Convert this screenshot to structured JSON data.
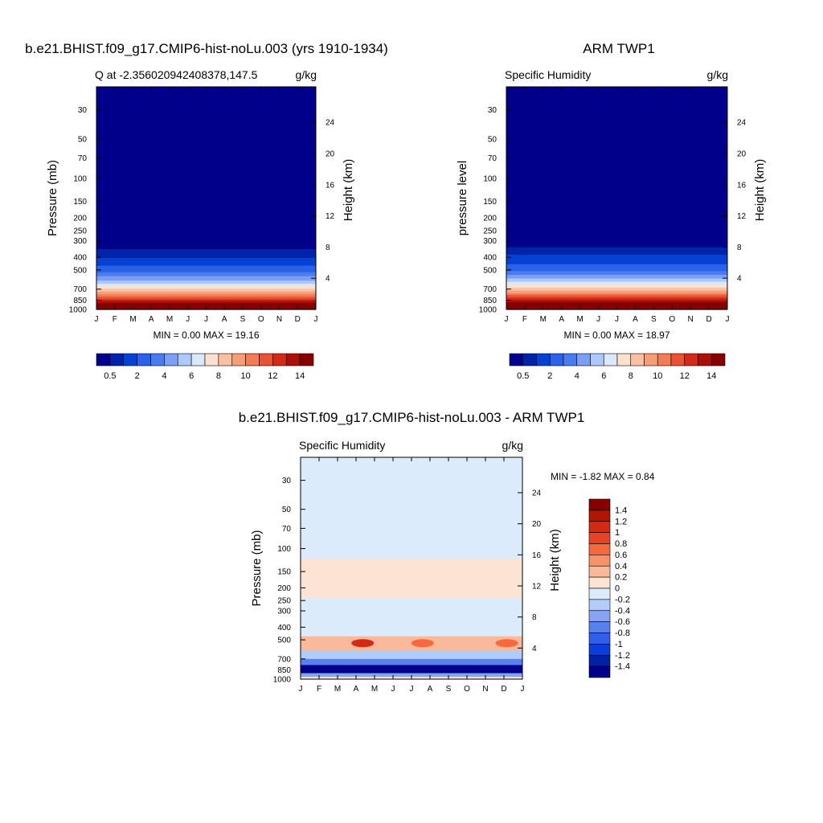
{
  "chart_data": [
    {
      "type": "heatmap",
      "title": "b.e21.BHIST.f09_g17.CMIP6-hist-noLu.003 (yrs 1910-1934)",
      "subtitle_left": "Q at -2.356020942408378,147.5",
      "subtitle_right": "g/kg",
      "ylabel": "Pressure (mb)",
      "ylabel_right": "Height (km)",
      "x_ticks": [
        "J",
        "F",
        "M",
        "A",
        "M",
        "J",
        "J",
        "A",
        "S",
        "O",
        "N",
        "D",
        "J"
      ],
      "y_ticks": [
        "30",
        "50",
        "70",
        "100",
        "150",
        "200",
        "250",
        "300",
        "400",
        "500",
        "700",
        "850",
        "1000"
      ],
      "y_ticks_right": [
        "24",
        "20",
        "16",
        "12",
        "8",
        "4"
      ],
      "min_max_text": "MIN =   0.00 MAX =  19.16",
      "colorbar_labels": [
        "0.5",
        "2",
        "4",
        "6",
        "8",
        "10",
        "12",
        "14"
      ],
      "profile": [
        {
          "p": 300,
          "q": 0.1
        },
        {
          "p": 400,
          "q": 1.0
        },
        {
          "p": 500,
          "q": 2.5
        },
        {
          "p": 600,
          "q": 5.0
        },
        {
          "p": 700,
          "q": 8.0
        },
        {
          "p": 850,
          "q": 12.5
        },
        {
          "p": 1000,
          "q": 17.5
        }
      ],
      "scale": "sequential"
    },
    {
      "type": "heatmap",
      "title": "ARM TWP1",
      "subtitle_left": "Specific Humidity",
      "subtitle_right": "g/kg",
      "ylabel": "pressure level",
      "ylabel_right": "Height (km)",
      "x_ticks": [
        "J",
        "F",
        "M",
        "A",
        "M",
        "J",
        "J",
        "A",
        "S",
        "O",
        "N",
        "D",
        "J"
      ],
      "y_ticks": [
        "30",
        "50",
        "70",
        "100",
        "150",
        "200",
        "250",
        "300",
        "400",
        "500",
        "700",
        "850",
        "1000"
      ],
      "y_ticks_right": [
        "24",
        "20",
        "16",
        "12",
        "8",
        "4"
      ],
      "min_max_text": "MIN =   0.00 MAX =  18.97",
      "colorbar_labels": [
        "0.5",
        "2",
        "4",
        "6",
        "8",
        "10",
        "12",
        "14"
      ],
      "profile": [
        {
          "p": 300,
          "q": 0.1
        },
        {
          "p": 400,
          "q": 1.2
        },
        {
          "p": 500,
          "q": 2.8
        },
        {
          "p": 600,
          "q": 5.5
        },
        {
          "p": 700,
          "q": 8.5
        },
        {
          "p": 850,
          "q": 13.0
        },
        {
          "p": 1000,
          "q": 17.8
        }
      ],
      "scale": "sequential"
    },
    {
      "type": "heatmap",
      "title": "b.e21.BHIST.f09_g17.CMIP6-hist-noLu.003 - ARM TWP1",
      "subtitle_left": "Specific Humidity",
      "subtitle_right": "g/kg",
      "ylabel": "Pressure (mb)",
      "ylabel_right": "Height (km)",
      "x_ticks": [
        "J",
        "F",
        "M",
        "A",
        "M",
        "J",
        "J",
        "A",
        "S",
        "O",
        "N",
        "D",
        "J"
      ],
      "y_ticks": [
        "30",
        "50",
        "70",
        "100",
        "150",
        "200",
        "250",
        "300",
        "400",
        "500",
        "700",
        "850",
        "1000"
      ],
      "y_ticks_right": [
        "24",
        "20",
        "16",
        "12",
        "8",
        "4"
      ],
      "min_max_text": "MIN =  -1.82 MAX =   0.84",
      "colorbar_labels": [
        "1.4",
        "1.2",
        "1",
        "0.8",
        "0.6",
        "0.4",
        "0.2",
        "0",
        "-0.2",
        "-0.4",
        "-0.6",
        "-0.8",
        "-1",
        "-1.2",
        "-1.4"
      ],
      "diff_bands": [
        {
          "p_top": 10,
          "p_bottom": 120,
          "value": -0.1
        },
        {
          "p_top": 120,
          "p_bottom": 240,
          "value": 0.1
        },
        {
          "p_top": 240,
          "p_bottom": 470,
          "value": -0.15
        },
        {
          "p_top": 470,
          "p_bottom": 600,
          "value": 0.25
        },
        {
          "p_top": 600,
          "p_bottom": 700,
          "value": -0.3
        },
        {
          "p_top": 700,
          "p_bottom": 780,
          "value": -0.8
        },
        {
          "p_top": 780,
          "p_bottom": 900,
          "value": -1.5
        },
        {
          "p_top": 900,
          "p_bottom": 960,
          "value": -0.6
        },
        {
          "p_top": 960,
          "p_bottom": 1000,
          "value": 0.05
        }
      ],
      "scale": "diverging"
    }
  ],
  "colors": {
    "sequential": [
      "#00008a",
      "#0023a8",
      "#0641d4",
      "#2a62ea",
      "#4a7cf0",
      "#7b9ef6",
      "#afc8f7",
      "#d9e8fb",
      "#fde1d0",
      "#fac0a2",
      "#f79d78",
      "#f27c53",
      "#e85235",
      "#d22a1a",
      "#ab1008",
      "#860000"
    ],
    "diverging": [
      "#860000",
      "#b11506",
      "#d22a14",
      "#ea4225",
      "#f6693e",
      "#f8926a",
      "#f9b99a",
      "#fde3d3",
      "#dcebfb",
      "#b2ccf6",
      "#85a5f2",
      "#5a80ee",
      "#3060ea",
      "#0b3ed7",
      "#0021a6",
      "#00008a"
    ]
  }
}
